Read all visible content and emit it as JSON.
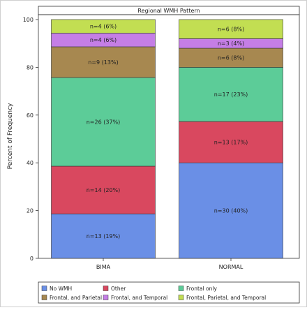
{
  "chart_data": {
    "type": "bar",
    "stacked": true,
    "title": "Regional WMH Pattern",
    "ylabel": "Percent of Frequency",
    "xlabel": "",
    "ylim": [
      0,
      100
    ],
    "yticks": [
      0,
      20,
      40,
      60,
      80,
      100
    ],
    "grid": false,
    "legend_position": "bottom",
    "categories": [
      "BIMA",
      "NORMAL"
    ],
    "series": [
      {
        "name": "No WMH",
        "color": "#6a8fe6",
        "values": [
          18.6,
          40.0
        ],
        "labels": [
          "n=13 (19%)",
          "n=30 (40%)"
        ]
      },
      {
        "name": "Other",
        "color": "#d9485f",
        "values": [
          20.0,
          17.3
        ],
        "labels": [
          "n=14 (20%)",
          "n=13 (17%)"
        ]
      },
      {
        "name": "Frontal only",
        "color": "#5ccc98",
        "values": [
          37.1,
          22.7
        ],
        "labels": [
          "n=26 (37%)",
          "n=17 (23%)"
        ]
      },
      {
        "name": "Frontal, and Parietal",
        "color": "#a78850",
        "values": [
          12.9,
          8.0
        ],
        "labels": [
          "n=9 (13%)",
          "n=6 (8%)"
        ]
      },
      {
        "name": "Frontal, and Temporal",
        "color": "#c57ee6",
        "values": [
          5.7,
          4.0
        ],
        "labels": [
          "n=4 (6%)",
          "n=3 (4%)"
        ]
      },
      {
        "name": "Frontal, Parietal, and Temporal",
        "color": "#c2de52",
        "values": [
          5.7,
          8.0
        ],
        "labels": [
          "n=4 (6%)",
          "n=6 (8%)"
        ]
      }
    ]
  }
}
